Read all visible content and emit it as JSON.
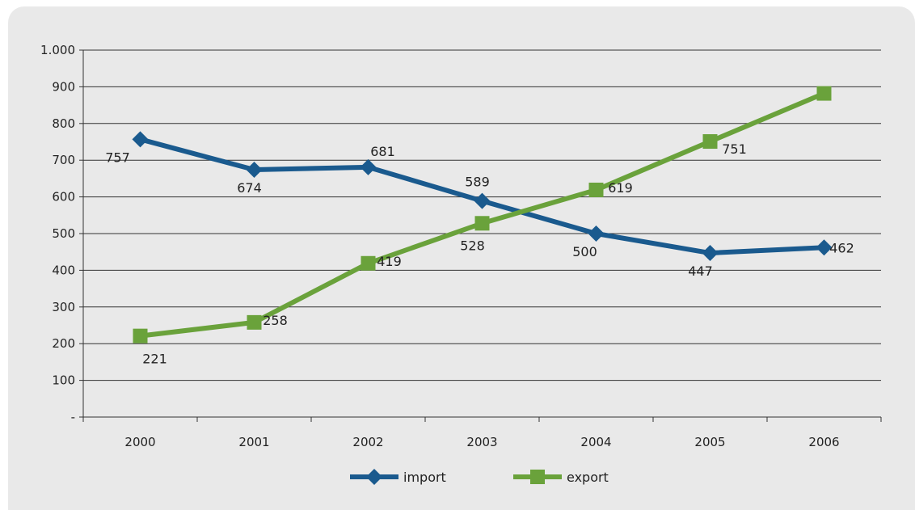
{
  "chart_data": {
    "type": "line",
    "categories": [
      "2000",
      "2001",
      "2002",
      "2003",
      "2004",
      "2005",
      "2006"
    ],
    "y_tick_labels": [
      "-",
      "100",
      "200",
      "300",
      "400",
      "500",
      "600",
      "700",
      "800",
      "900",
      "1.000"
    ],
    "ylim": [
      0,
      1000
    ],
    "grid": true,
    "legend_position": "bottom",
    "series": [
      {
        "name": "import",
        "color": "#1a5a8e",
        "marker": "diamond",
        "values": [
          757,
          674,
          681,
          589,
          500,
          447,
          462
        ],
        "labels": [
          "757",
          "674",
          "681",
          "589",
          "500",
          "447",
          "462"
        ]
      },
      {
        "name": "export",
        "color": "#6aa23b",
        "marker": "square",
        "values": [
          221,
          258,
          419,
          528,
          619,
          751,
          882
        ],
        "labels": [
          "221",
          "258",
          "419",
          "528",
          "619",
          "751",
          ""
        ]
      }
    ]
  }
}
